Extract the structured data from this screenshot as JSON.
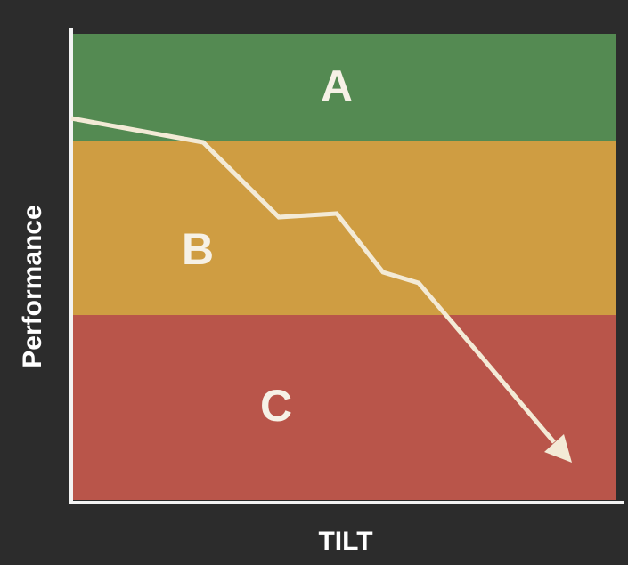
{
  "regions": [
    {
      "label": "A"
    },
    {
      "label": "B"
    },
    {
      "label": "C"
    }
  ],
  "axes": {
    "y_label": "Performance",
    "x_label": "TILT"
  }
}
